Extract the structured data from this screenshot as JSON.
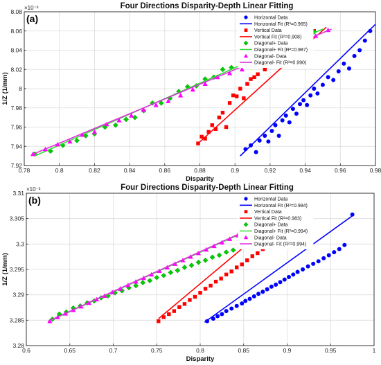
{
  "chart_data": [
    {
      "type": "scatter",
      "panel_label": "(a)",
      "title": "Four Directions Disparity-Depth Linear Fitting",
      "xlabel": "Disparity",
      "ylabel": "1/Z (1/mm)",
      "y_exponent": "×10⁻³",
      "xlim": [
        0.78,
        0.98
      ],
      "ylim": [
        7.92,
        8.08
      ],
      "xticks": [
        "0.78",
        "0.8",
        "0.82",
        "0.84",
        "0.86",
        "0.88",
        "0.9",
        "0.92",
        "0.94",
        "0.96",
        "0.98"
      ],
      "yticks": [
        "7.92",
        "7.94",
        "7.96",
        "7.98",
        "8",
        "8.02",
        "8.04",
        "8.06",
        "8.08"
      ],
      "grid": true,
      "legend_position": "top-right",
      "series": [
        {
          "name": "Horizontal Data",
          "kind": "scatter",
          "marker": "circle",
          "color": "#0000ff",
          "x": [
            0.906,
            0.909,
            0.912,
            0.914,
            0.917,
            0.919,
            0.921,
            0.923,
            0.925,
            0.927,
            0.929,
            0.931,
            0.933,
            0.935,
            0.937,
            0.939,
            0.941,
            0.943,
            0.945,
            0.947,
            0.95,
            0.953,
            0.956,
            0.959,
            0.962,
            0.965,
            0.968,
            0.971,
            0.974,
            0.977
          ],
          "y": [
            7.937,
            7.941,
            7.934,
            7.946,
            7.951,
            7.945,
            7.956,
            7.962,
            7.951,
            7.967,
            7.972,
            7.965,
            7.979,
            7.974,
            7.984,
            7.988,
            7.983,
            7.993,
            8.0,
            7.995,
            8.004,
            8.012,
            8.009,
            8.018,
            8.026,
            8.021,
            8.034,
            8.04,
            8.05,
            8.06
          ]
        },
        {
          "name": "Horizontal Fit (R²=0.965)",
          "kind": "line",
          "color": "#0000ff",
          "x": [
            0.903,
            0.98
          ],
          "y": [
            7.93,
            8.067
          ]
        },
        {
          "name": "Vertical Data",
          "kind": "scatter",
          "marker": "square",
          "color": "#ff0000",
          "x": [
            0.879,
            0.881,
            0.883,
            0.885,
            0.887,
            0.889,
            0.891,
            0.893,
            0.895,
            0.897,
            0.899,
            0.901,
            0.903,
            0.905,
            0.907,
            0.909,
            0.911,
            0.913,
            0.915,
            0.917,
            0.919,
            0.921,
            0.924,
            0.927,
            0.93,
            0.933,
            0.936,
            0.939,
            0.942,
            0.945
          ],
          "y": [
            7.943,
            7.95,
            7.948,
            7.955,
            7.962,
            7.958,
            7.97,
            7.975,
            7.96,
            7.985,
            7.993,
            7.992,
            8.0,
            7.99,
            8.005,
            8.01,
            8.012,
            8.015,
            8.025,
            8.02,
            8.03,
            8.028,
            8.037,
            8.035,
            8.043,
            8.047,
            8.05,
            8.052,
            8.055,
            8.06
          ]
        },
        {
          "name": "Vertical Fit (R²=0.908)",
          "kind": "line",
          "color": "#ff0000",
          "x": [
            0.879,
            0.952
          ],
          "y": [
            7.943,
            8.064
          ]
        },
        {
          "name": "Diagonal+ Data",
          "kind": "scatter",
          "marker": "diamond",
          "color": "#00cc00",
          "x": [
            0.786,
            0.795,
            0.802,
            0.81,
            0.815,
            0.82,
            0.826,
            0.832,
            0.838,
            0.843,
            0.848,
            0.853,
            0.858,
            0.863,
            0.868,
            0.873,
            0.878,
            0.883,
            0.888,
            0.893,
            0.898,
            0.903,
            0.908,
            0.913,
            0.918,
            0.923,
            0.928,
            0.933,
            0.938,
            0.945
          ],
          "y": [
            7.932,
            7.935,
            7.941,
            7.946,
            7.951,
            7.953,
            7.96,
            7.962,
            7.968,
            7.97,
            7.977,
            7.985,
            7.985,
            7.99,
            7.997,
            8.002,
            8.003,
            8.01,
            8.012,
            8.02,
            8.022,
            8.028,
            8.03,
            8.033,
            8.037,
            8.042,
            8.045,
            8.05,
            8.055,
            8.059
          ]
        },
        {
          "name": "Diagonal+ Fit (R²=0.987)",
          "kind": "line",
          "color": "#33dd33",
          "x": [
            0.786,
            0.95
          ],
          "y": [
            7.93,
            8.062
          ]
        },
        {
          "name": "Diagonal- Data",
          "kind": "scatter",
          "marker": "triangle",
          "color": "#ff00ff",
          "x": [
            0.785,
            0.792,
            0.799,
            0.806,
            0.813,
            0.82,
            0.827,
            0.834,
            0.841,
            0.848,
            0.855,
            0.862,
            0.869,
            0.876,
            0.883,
            0.89,
            0.897,
            0.904,
            0.911,
            0.918,
            0.925,
            0.932,
            0.939,
            0.946,
            0.953
          ],
          "y": [
            7.932,
            7.937,
            7.942,
            7.945,
            7.952,
            7.955,
            7.963,
            7.967,
            7.972,
            7.978,
            7.983,
            7.987,
            7.993,
            7.999,
            8.005,
            8.012,
            8.016,
            8.02,
            8.027,
            8.033,
            8.038,
            8.043,
            8.048,
            8.055,
            8.061
          ]
        },
        {
          "name": "Diagonal- Fit (R²=0.990)",
          "kind": "line",
          "color": "#dd33dd",
          "x": [
            0.784,
            0.955
          ],
          "y": [
            7.931,
            8.062
          ]
        }
      ]
    },
    {
      "type": "scatter",
      "panel_label": "(b)",
      "title": "Four Directions Disparity-Depth Linear Fitting",
      "xlabel": "Disparity",
      "ylabel": "1/Z (1/mm)",
      "y_exponent": "×10⁻³",
      "xlim": [
        0.6,
        1.0
      ],
      "ylim": [
        3.28,
        3.31
      ],
      "xticks": [
        "0.6",
        "0.65",
        "0.7",
        "0.75",
        "0.8",
        "0.85",
        "0.9",
        "0.95",
        "1"
      ],
      "yticks": [
        "3.28",
        "3.285",
        "3.29",
        "3.295",
        "3.3",
        "3.305",
        "3.31"
      ],
      "grid": true,
      "legend_position": "top-right",
      "series": [
        {
          "name": "Horizontal Data",
          "kind": "scatter",
          "marker": "circle",
          "color": "#0000ff",
          "x": [
            0.808,
            0.815,
            0.82,
            0.825,
            0.83,
            0.836,
            0.842,
            0.848,
            0.852,
            0.857,
            0.862,
            0.867,
            0.872,
            0.877,
            0.882,
            0.887,
            0.892,
            0.897,
            0.902,
            0.907,
            0.912,
            0.918,
            0.924,
            0.93,
            0.936,
            0.942,
            0.948,
            0.954,
            0.96,
            0.966,
            0.975
          ],
          "y": [
            3.2848,
            3.2853,
            3.2858,
            3.2862,
            3.2868,
            3.2873,
            3.2878,
            3.2883,
            3.2888,
            3.2892,
            3.2897,
            3.2902,
            3.2906,
            3.2911,
            3.2916,
            3.292,
            3.2925,
            3.293,
            3.2935,
            3.294,
            3.2945,
            3.295,
            3.2956,
            3.2961,
            3.2966,
            3.2972,
            3.2978,
            3.2984,
            3.299,
            3.2998,
            3.3058
          ]
        },
        {
          "name": "Horizontal Fit (R²=0.984)",
          "kind": "line",
          "color": "#0000ff",
          "x": [
            0.805,
            0.977
          ],
          "y": [
            3.2846,
            3.3058
          ]
        },
        {
          "name": "Vertical Data",
          "kind": "scatter",
          "marker": "square",
          "color": "#ff0000",
          "x": [
            0.752,
            0.758,
            0.764,
            0.77,
            0.776,
            0.782,
            0.788,
            0.794,
            0.8,
            0.806,
            0.812,
            0.818,
            0.824,
            0.83,
            0.836,
            0.842,
            0.848,
            0.854,
            0.86,
            0.866,
            0.872,
            0.878,
            0.884,
            0.89,
            0.896
          ],
          "y": [
            3.2848,
            3.2856,
            3.2862,
            3.2868,
            3.2876,
            3.2882,
            3.289,
            3.2896,
            3.2904,
            3.2912,
            3.2918,
            3.2926,
            3.2932,
            3.294,
            3.2946,
            3.2954,
            3.296,
            3.2968,
            3.2976,
            3.2982,
            3.299,
            3.2996,
            3.3004,
            3.301,
            3.3016
          ]
        },
        {
          "name": "Vertical Fit (R²=0.983)",
          "kind": "line",
          "color": "#ff0000",
          "x": [
            0.752,
            0.895
          ],
          "y": [
            3.2853,
            3.3058
          ]
        },
        {
          "name": "Diagonal+ Data",
          "kind": "scatter",
          "marker": "diamond",
          "color": "#00cc00",
          "x": [
            0.63,
            0.638,
            0.646,
            0.654,
            0.662,
            0.67,
            0.678,
            0.686,
            0.694,
            0.702,
            0.71,
            0.718,
            0.726,
            0.734,
            0.742,
            0.75,
            0.758,
            0.766,
            0.774,
            0.782,
            0.79,
            0.798,
            0.806,
            0.814,
            0.822,
            0.83,
            0.838,
            0.846,
            0.854,
            0.862,
            0.87,
            0.878,
            0.886,
            0.894
          ],
          "y": [
            3.2852,
            3.2862,
            3.2866,
            3.2874,
            3.2878,
            3.2884,
            3.2888,
            3.2894,
            3.2898,
            3.2904,
            3.2908,
            3.2914,
            3.2918,
            3.2924,
            3.2928,
            3.2934,
            3.2938,
            3.2944,
            3.2948,
            3.2954,
            3.2958,
            3.2964,
            3.2968,
            3.2974,
            3.2978,
            3.2984,
            3.2988,
            3.2994,
            3.2998,
            3.3004,
            3.3008,
            3.3014,
            3.3018,
            3.3024
          ]
        },
        {
          "name": "Diagonal+ Fit (R²=0.994)",
          "kind": "line",
          "color": "#33dd33",
          "x": [
            0.627,
            0.895
          ],
          "y": [
            3.2849,
            3.3058
          ]
        },
        {
          "name": "Diagonal- Data",
          "kind": "scatter",
          "marker": "triangle",
          "color": "#ff00ff",
          "x": [
            0.627,
            0.636,
            0.645,
            0.654,
            0.663,
            0.672,
            0.681,
            0.69,
            0.699,
            0.708,
            0.717,
            0.726,
            0.735,
            0.744,
            0.753,
            0.762,
            0.771,
            0.78,
            0.789,
            0.798,
            0.807,
            0.816,
            0.825,
            0.834,
            0.843,
            0.852,
            0.861,
            0.87,
            0.879,
            0.888,
            0.895
          ],
          "y": [
            3.2848,
            3.2856,
            3.2863,
            3.287,
            3.2877,
            3.2884,
            3.2891,
            3.2898,
            3.2905,
            3.2912,
            3.2919,
            3.2926,
            3.2933,
            3.294,
            3.2947,
            3.2954,
            3.2961,
            3.2968,
            3.2975,
            3.2982,
            3.2989,
            3.2996,
            3.3003,
            3.301,
            3.3017,
            3.3024,
            3.3031,
            3.3038,
            3.3045,
            3.3052,
            3.3058
          ]
        },
        {
          "name": "Diagonal- Fit (R²=0.994)",
          "kind": "line",
          "color": "#dd33dd",
          "x": [
            0.625,
            0.897
          ],
          "y": [
            3.2848,
            3.3061
          ]
        }
      ]
    }
  ]
}
